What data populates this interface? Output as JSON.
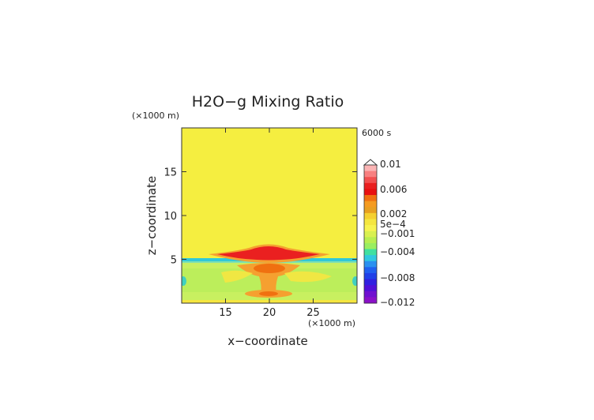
{
  "chart_data": {
    "type": "heatmap",
    "title": "H2O−g Mixing Ratio",
    "xlabel": "x−coordinate",
    "ylabel": "z−coordinate",
    "x_unit": "(×1000 m)",
    "y_unit": "(×1000 m)",
    "time_label": "6000 s",
    "xlim": [
      10,
      30
    ],
    "ylim": [
      0,
      20
    ],
    "x_ticks": [
      15,
      20,
      25
    ],
    "x_tick_labels": [
      "15",
      "20",
      "25"
    ],
    "y_ticks": [
      5,
      10,
      15
    ],
    "y_tick_labels": [
      "5",
      "10",
      "15"
    ],
    "colorbar": {
      "levels": [
        0.01,
        0.006,
        0.002,
        0.0005,
        -0.001,
        -0.004,
        -0.008,
        -0.012
      ],
      "labels": [
        "0.01",
        "0.006",
        "0.002",
        "5e−4",
        "−0.001",
        "−0.004",
        "−0.008",
        "−0.012"
      ],
      "colors": [
        "#fbb4b4",
        "#f88080",
        "#f25050",
        "#ea2020",
        "#e81010",
        "#f07010",
        "#f59b20",
        "#e8a020",
        "#f5d030",
        "#f5e640",
        "#f7f350",
        "#d9f050",
        "#b8ee50",
        "#9aee60",
        "#40e0a0",
        "#30c8e0",
        "#2a90f0",
        "#2060f0",
        "#2040e8",
        "#3020e0",
        "#5010d8",
        "#7010d0",
        "#8a10c8"
      ]
    },
    "regions": [
      {
        "name": "background",
        "z": [
          6,
          20
        ],
        "value": 0.0002,
        "color": "#f5ee40"
      },
      {
        "name": "lower-layer",
        "z": [
          0,
          4.8
        ],
        "value": 0.0003,
        "color": "#c8f060"
      },
      {
        "name": "inversion-line",
        "z": [
          4.8,
          5.1
        ],
        "value": -0.003,
        "color": "#30c8d8"
      },
      {
        "name": "anvil-core",
        "x_center": 20,
        "z_center": 5.8,
        "value": 0.005,
        "color": "#e82020"
      },
      {
        "name": "updraft",
        "x_center": 20,
        "z_center": 3,
        "value": 0.002,
        "color": "#f5a030"
      },
      {
        "name": "base",
        "x_center": 20,
        "z_center": 1.2,
        "value": 0.002,
        "color": "#f5a030"
      }
    ]
  }
}
